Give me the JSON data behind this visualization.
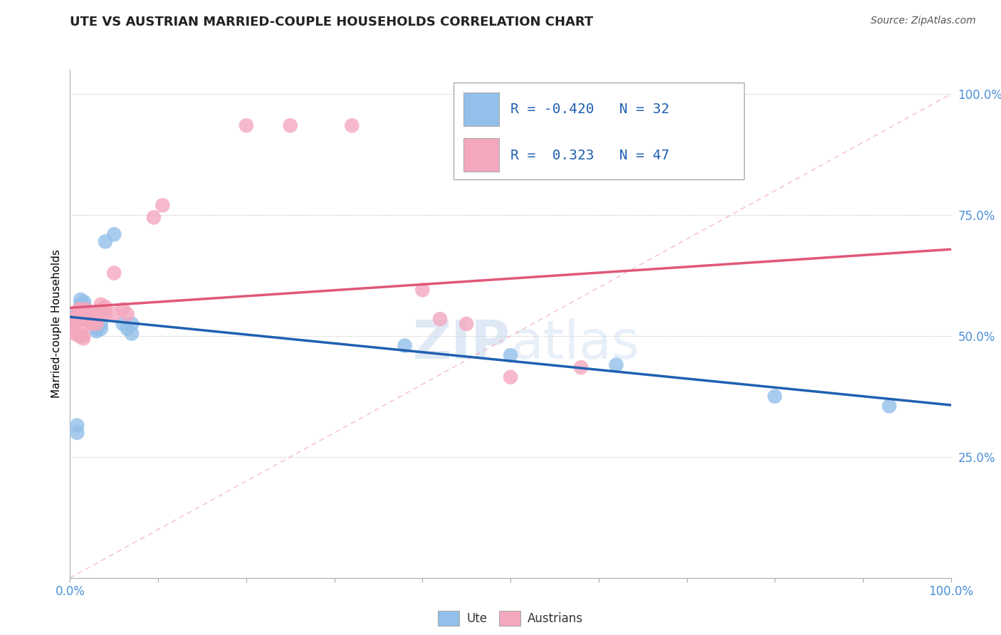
{
  "title": "UTE VS AUSTRIAN MARRIED-COUPLE HOUSEHOLDS CORRELATION CHART",
  "source": "Source: ZipAtlas.com",
  "ylabel": "Married-couple Households",
  "watermark": "ZIPatlas",
  "xlim": [
    0,
    1.0
  ],
  "ylim": [
    0,
    1.05
  ],
  "ytick_labels": [
    "25.0%",
    "50.0%",
    "75.0%",
    "100.0%"
  ],
  "yticks": [
    0.25,
    0.5,
    0.75,
    1.0
  ],
  "ute_color": "#92C0EA",
  "austrian_color": "#F4A8BE",
  "ute_line_color": "#2060B0",
  "austrian_line_color": "#E05878",
  "diagonal_color": "#F4A8BE",
  "ute_R": -0.42,
  "ute_N": 32,
  "austrian_R": 0.323,
  "austrian_N": 47,
  "legend_color": "#2060B0",
  "ytick_color": "#4A90D9",
  "xtick_color": "#4A90D9",
  "ute_points": [
    [
      0.005,
      0.535
    ],
    [
      0.005,
      0.545
    ],
    [
      0.008,
      0.3
    ],
    [
      0.008,
      0.315
    ],
    [
      0.012,
      0.565
    ],
    [
      0.012,
      0.575
    ],
    [
      0.013,
      0.545
    ],
    [
      0.015,
      0.555
    ],
    [
      0.015,
      0.565
    ],
    [
      0.016,
      0.57
    ],
    [
      0.017,
      0.545
    ],
    [
      0.017,
      0.545
    ],
    [
      0.018,
      0.555
    ],
    [
      0.019,
      0.535
    ],
    [
      0.02,
      0.545
    ],
    [
      0.025,
      0.545
    ],
    [
      0.025,
      0.545
    ],
    [
      0.03,
      0.515
    ],
    [
      0.03,
      0.51
    ],
    [
      0.035,
      0.525
    ],
    [
      0.035,
      0.515
    ],
    [
      0.04,
      0.695
    ],
    [
      0.05,
      0.71
    ],
    [
      0.06,
      0.525
    ],
    [
      0.065,
      0.515
    ],
    [
      0.07,
      0.525
    ],
    [
      0.07,
      0.505
    ],
    [
      0.38,
      0.48
    ],
    [
      0.5,
      0.46
    ],
    [
      0.62,
      0.44
    ],
    [
      0.8,
      0.375
    ],
    [
      0.93,
      0.355
    ]
  ],
  "austrian_points": [
    [
      0.005,
      0.525
    ],
    [
      0.005,
      0.515
    ],
    [
      0.005,
      0.505
    ],
    [
      0.008,
      0.545
    ],
    [
      0.008,
      0.535
    ],
    [
      0.01,
      0.555
    ],
    [
      0.01,
      0.545
    ],
    [
      0.01,
      0.5
    ],
    [
      0.012,
      0.555
    ],
    [
      0.012,
      0.545
    ],
    [
      0.012,
      0.535
    ],
    [
      0.013,
      0.5
    ],
    [
      0.015,
      0.545
    ],
    [
      0.015,
      0.5
    ],
    [
      0.015,
      0.495
    ],
    [
      0.018,
      0.555
    ],
    [
      0.018,
      0.545
    ],
    [
      0.018,
      0.535
    ],
    [
      0.02,
      0.545
    ],
    [
      0.02,
      0.535
    ],
    [
      0.02,
      0.525
    ],
    [
      0.022,
      0.535
    ],
    [
      0.022,
      0.53
    ],
    [
      0.025,
      0.545
    ],
    [
      0.025,
      0.535
    ],
    [
      0.025,
      0.525
    ],
    [
      0.03,
      0.535
    ],
    [
      0.03,
      0.525
    ],
    [
      0.035,
      0.565
    ],
    [
      0.035,
      0.555
    ],
    [
      0.035,
      0.545
    ],
    [
      0.04,
      0.56
    ],
    [
      0.04,
      0.545
    ],
    [
      0.05,
      0.63
    ],
    [
      0.05,
      0.545
    ],
    [
      0.06,
      0.555
    ],
    [
      0.065,
      0.545
    ],
    [
      0.095,
      0.745
    ],
    [
      0.105,
      0.77
    ],
    [
      0.2,
      0.935
    ],
    [
      0.25,
      0.935
    ],
    [
      0.32,
      0.935
    ],
    [
      0.4,
      0.595
    ],
    [
      0.42,
      0.535
    ],
    [
      0.45,
      0.525
    ],
    [
      0.5,
      0.415
    ],
    [
      0.58,
      0.435
    ]
  ]
}
